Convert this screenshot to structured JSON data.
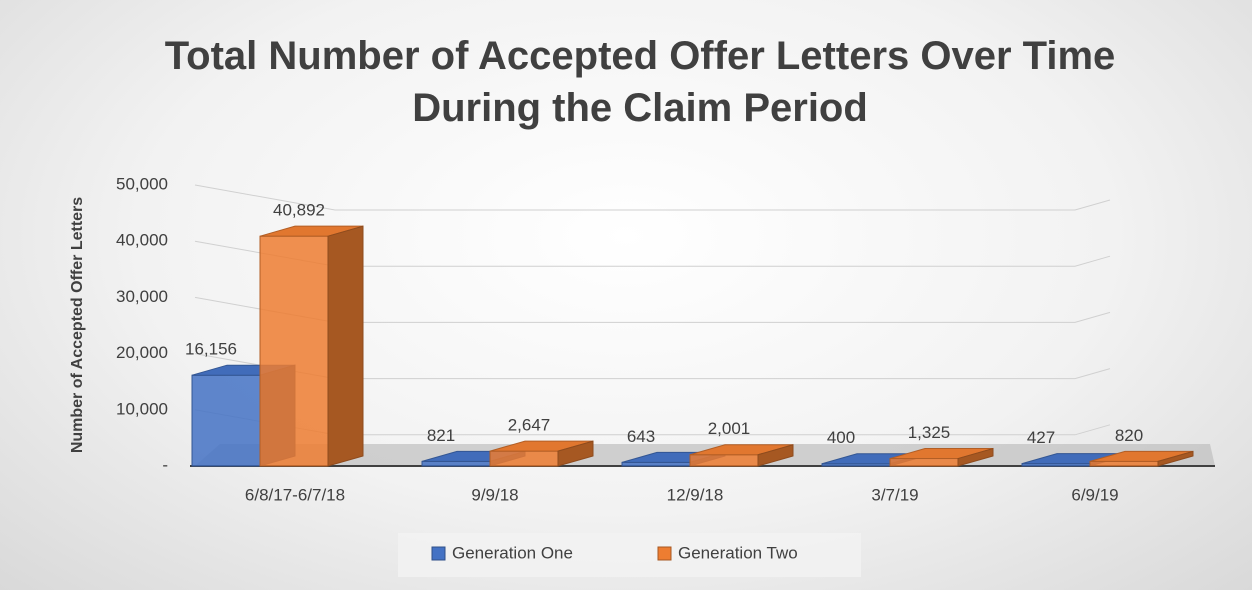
{
  "chart_data": {
    "type": "bar3d",
    "title": "Total Number of Accepted Offer Letters Over Time During the Claim Period",
    "y_label": "Number of Accepted Offer Letters",
    "categories": [
      "6/8/17-6/7/18",
      "9/9/18",
      "12/9/18",
      "3/7/19",
      "6/9/19"
    ],
    "series": [
      {
        "name": "Generation One",
        "color": "#4472c4",
        "values": [
          16156,
          821,
          643,
          400,
          427
        ],
        "value_labels": [
          "16,156",
          "821",
          "643",
          "400",
          "427"
        ]
      },
      {
        "name": "Generation Two",
        "color": "#ed7d31",
        "values": [
          40892,
          2647,
          2001,
          1325,
          820
        ],
        "value_labels": [
          "40,892",
          "2,647",
          "2,001",
          "1,325",
          "820"
        ]
      }
    ],
    "ylim": [
      0,
      50000
    ],
    "yticks": [
      {
        "value": 0,
        "label": "-"
      },
      {
        "value": 10000,
        "label": "10,000"
      },
      {
        "value": 20000,
        "label": "20,000"
      },
      {
        "value": 30000,
        "label": "30,000"
      },
      {
        "value": 40000,
        "label": "40,000"
      },
      {
        "value": 50000,
        "label": "50,000"
      }
    ],
    "grid": true,
    "legend": "bottom"
  }
}
